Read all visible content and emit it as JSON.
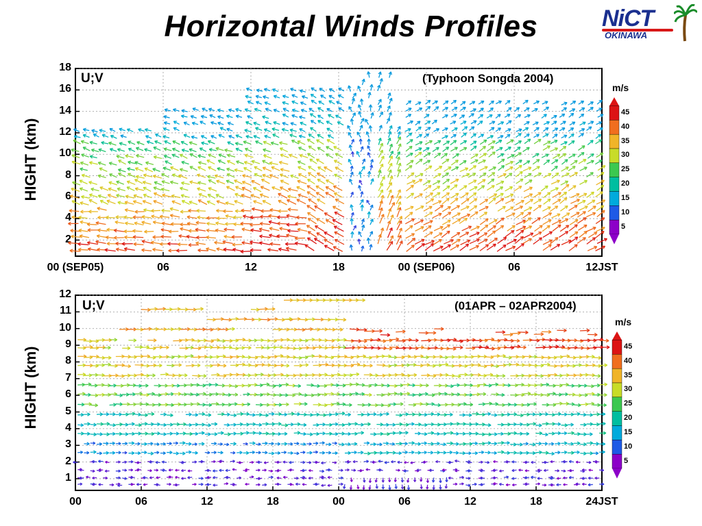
{
  "page_title": "Horizontal Winds Profiles",
  "logo": {
    "text": "NiCT",
    "subtext": "OKINAWA"
  },
  "chart_data": [
    {
      "type": "vector-field",
      "plot_label": "U;V",
      "annotation": "(Typhoon Songda 2004)",
      "ylabel": "HIGHT (km)",
      "yticks": [
        "2",
        "4",
        "6",
        "8",
        "10",
        "12",
        "14",
        "16",
        "18"
      ],
      "ylim": [
        0.5,
        18
      ],
      "xticks": [
        "00 (SEP05)",
        "06",
        "12",
        "18",
        "00 (SEP06)",
        "06",
        "12JST"
      ],
      "xlim_hours": [
        0,
        36
      ],
      "colorbar": {
        "unit": "m/s",
        "ticks": [
          "45",
          "40",
          "35",
          "30",
          "25",
          "20",
          "15",
          "10",
          "5"
        ]
      }
    },
    {
      "type": "vector-field",
      "plot_label": "U;V",
      "annotation": "(01APR – 02APR2004)",
      "ylabel": "HIGHT (km)",
      "yticks": [
        "1",
        "2",
        "3",
        "4",
        "5",
        "6",
        "7",
        "8",
        "9",
        "10",
        "11",
        "12"
      ],
      "ylim": [
        0.3,
        12
      ],
      "xticks": [
        "00",
        "06",
        "12",
        "18",
        "00",
        "06",
        "12",
        "18",
        "24JST"
      ],
      "xlim_hours": [
        0,
        48
      ],
      "colorbar": {
        "unit": "m/s",
        "ticks": [
          "45",
          "40",
          "35",
          "30",
          "25",
          "20",
          "15",
          "10",
          "5"
        ]
      }
    }
  ]
}
